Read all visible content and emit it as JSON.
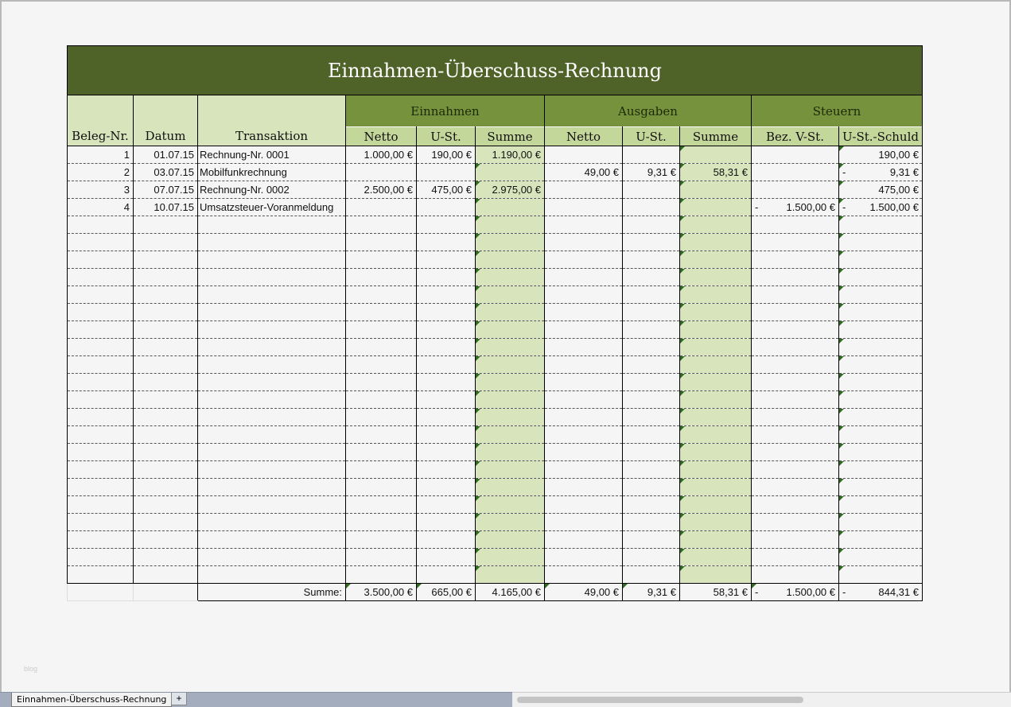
{
  "title": "Einnahmen-Überschuss-Rechnung",
  "headers": {
    "beleg": "Beleg-Nr.",
    "datum": "Datum",
    "transaktion": "Transaktion",
    "groups": [
      "Einnahmen",
      "Ausgaben",
      "Steuern"
    ],
    "sub": [
      "Netto",
      "U-St.",
      "Summe",
      "Netto",
      "U-St.",
      "Summe",
      "Bez. V-St.",
      "U-St.-Schuld"
    ]
  },
  "rows": [
    [
      "1",
      "01.07.15",
      "Rechnung-Nr. 0001",
      "1.000,00 €",
      "190,00 €",
      "1.190,00 €",
      "",
      "",
      "",
      "",
      "190,00 €"
    ],
    [
      "2",
      "03.07.15",
      "Mobilfunkrechnung",
      "",
      "",
      "",
      "49,00 €",
      "9,31 €",
      "58,31 €",
      "",
      "-9,31 €"
    ],
    [
      "3",
      "07.07.15",
      "Rechnung-Nr. 0002",
      "2.500,00 €",
      "475,00 €",
      "2.975,00 €",
      "",
      "",
      "",
      "",
      "475,00 €"
    ],
    [
      "4",
      "10.07.15",
      "Umsatzsteuer-Voranmeldung",
      "",
      "",
      "",
      "",
      "",
      "",
      "-1.500,00 €",
      "-1.500,00 €"
    ]
  ],
  "totals": {
    "label": "Summe:",
    "values": [
      "3.500,00 €",
      "665,00 €",
      "4.165,00 €",
      "49,00 €",
      "9,31 €",
      "58,31 €",
      "-1.500,00 €",
      "-844,31 €"
    ]
  },
  "watermark": "blog",
  "sheet_tab": "Einnahmen-Überschuss-Rechnung",
  "add_sheet": "+",
  "colors": {
    "title_bg": "#4f6228",
    "group_bg": "#77923c",
    "sub_bg": "#c4d79b",
    "sum_col_bg": "#d8e4bc"
  }
}
